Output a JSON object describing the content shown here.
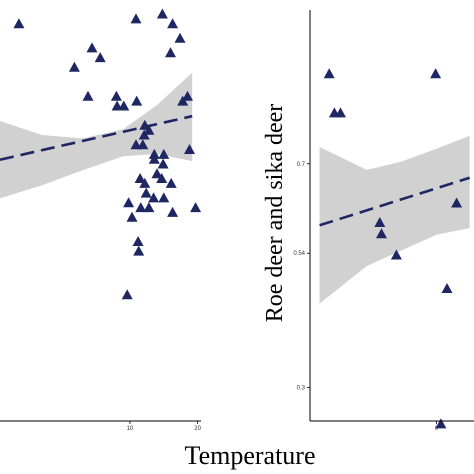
{
  "figure": {
    "xlabel": "Temperature"
  },
  "colors": {
    "marker": "#1f2763",
    "trend": "#1f2763",
    "band": "#c9c9c9",
    "axis": "#000000"
  },
  "chart_data": [
    {
      "type": "scatter",
      "xlabel": "",
      "ylabel": "",
      "xlim": [
        -9.2,
        20.5
      ],
      "ylim": [
        0.115,
        0.985
      ],
      "xticks": [
        10,
        20
      ],
      "yticks": [],
      "grid": false,
      "legend": "none",
      "points": {
        "x": [
          -6.4,
          1.8,
          10.9,
          14.8,
          16.3,
          17.4,
          5.6,
          16.0,
          3.8,
          8.1,
          9.1,
          17.8,
          18.5,
          4.4,
          11.0,
          8.0,
          12.8,
          12.2,
          11.9,
          12.1,
          13.6,
          13.6,
          14.9,
          15.0,
          18.8,
          10.9,
          14.0,
          11.5,
          12.2,
          14.7,
          16.1,
          12.4,
          13.5,
          9.8,
          11.6,
          12.8,
          15.0,
          16.3,
          10.3,
          19.7,
          11.2,
          11.3,
          9.6
        ],
        "y": [
          0.935,
          0.845,
          0.945,
          0.955,
          0.935,
          0.905,
          0.865,
          0.875,
          0.785,
          0.765,
          0.765,
          0.775,
          0.785,
          0.885,
          0.775,
          0.785,
          0.715,
          0.725,
          0.685,
          0.705,
          0.665,
          0.655,
          0.645,
          0.665,
          0.675,
          0.685,
          0.625,
          0.615,
          0.605,
          0.615,
          0.605,
          0.585,
          0.575,
          0.565,
          0.555,
          0.555,
          0.575,
          0.545,
          0.535,
          0.555,
          0.485,
          0.465,
          0.375
        ]
      },
      "trend": {
        "x": [
          -9.2,
          19.2
        ],
        "y": [
          0.655,
          0.745
        ]
      },
      "band": {
        "x": [
          -9.2,
          -3.0,
          3.0,
          9.0,
          14.0,
          19.2
        ],
        "lower": [
          0.575,
          0.602,
          0.633,
          0.662,
          0.667,
          0.652
        ],
        "upper": [
          0.735,
          0.706,
          0.699,
          0.718,
          0.768,
          0.835
        ]
      }
    },
    {
      "type": "scatter",
      "xlabel": "Temperature",
      "ylabel": "Roe deer and sika deer",
      "xlim": [
        -14.5,
        4.3
      ],
      "ylim": [
        0.24,
        0.975
      ],
      "xticks": [
        0
      ],
      "yticks": [
        0.3,
        0.54,
        0.7
      ],
      "grid": false,
      "legend": "none",
      "points": {
        "x": [
          -12.3,
          -11.7,
          -11.0,
          -0.1,
          -6.5,
          -6.3,
          -4.6,
          1.2,
          0.5,
          2.3
        ],
        "y": [
          0.86,
          0.79,
          0.79,
          0.86,
          0.594,
          0.574,
          0.536,
          0.476,
          0.234,
          0.629
        ]
      },
      "trend": {
        "x": [
          -13.4,
          3.8
        ],
        "y": [
          0.59,
          0.675
        ]
      },
      "band": {
        "x": [
          -13.4,
          -8.0,
          -4.0,
          0.0,
          3.8
        ],
        "lower": [
          0.45,
          0.517,
          0.545,
          0.573,
          0.585
        ],
        "upper": [
          0.73,
          0.689,
          0.704,
          0.727,
          0.75
        ]
      }
    }
  ]
}
